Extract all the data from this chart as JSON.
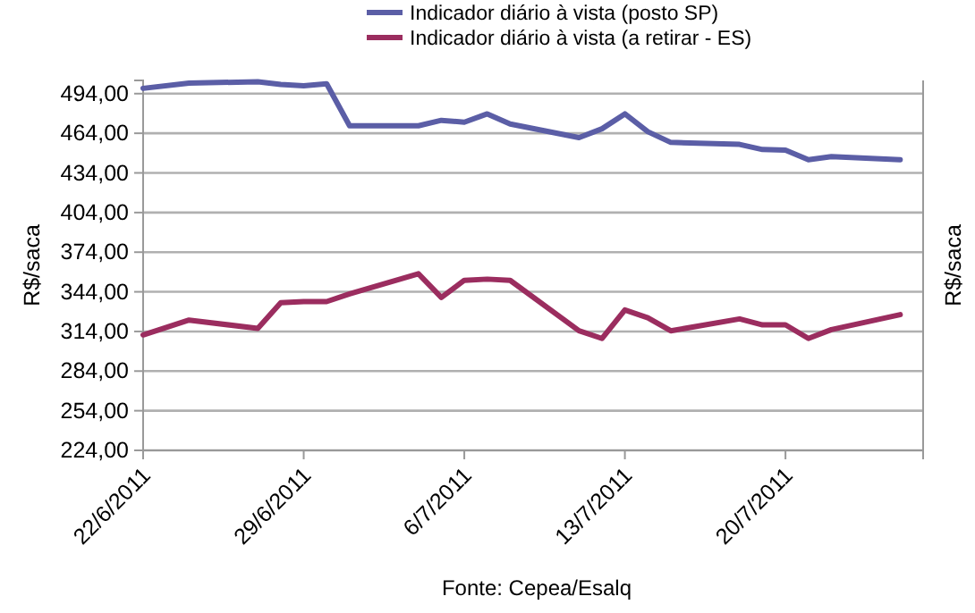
{
  "chart_data": {
    "type": "line",
    "ylabel": "R$/saca",
    "y2label": "R$/saca",
    "annotations": [
      "Fonte: Cepea/Esalq"
    ],
    "x": [
      "2011-06-22",
      "2011-06-24",
      "2011-06-27",
      "2011-06-28",
      "2011-06-29",
      "2011-06-30",
      "2011-07-01",
      "2011-07-04",
      "2011-07-05",
      "2011-07-06",
      "2011-07-07",
      "2011-07-08",
      "2011-07-11",
      "2011-07-12",
      "2011-07-13",
      "2011-07-14",
      "2011-07-15",
      "2011-07-18",
      "2011-07-19",
      "2011-07-20",
      "2011-07-21",
      "2011-07-22",
      "2011-07-25"
    ],
    "series": [
      {
        "name": "Indicador diário à vista (posto SP)",
        "color": "#5b5ea6",
        "values": [
          498,
          502,
          503,
          501,
          500,
          501.5,
          469.7,
          469.7,
          473.8,
          472.4,
          478.7,
          471,
          460.7,
          467.4,
          478.7,
          465.2,
          457.1,
          455.6,
          451.7,
          451.3,
          444,
          446.3,
          444
        ]
      },
      {
        "name": "Indicador diário à vista (a retirar - ES)",
        "color": "#9b2d5f",
        "values": [
          311.4,
          322.6,
          316.3,
          335.7,
          336.6,
          336.6,
          342.4,
          357.7,
          339.7,
          352.7,
          353.6,
          352.7,
          314.5,
          308.7,
          330.3,
          324.4,
          314.5,
          323.5,
          319,
          319,
          308.7,
          315.4,
          326.7
        ]
      }
    ],
    "xlim": [
      "2011-06-22",
      "2011-07-26"
    ],
    "xticks": [
      {
        "value": "2011-06-22",
        "label": "22/6/2011"
      },
      {
        "value": "2011-06-29",
        "label": "29/6/2011"
      },
      {
        "value": "2011-07-06",
        "label": "6/7/2011"
      },
      {
        "value": "2011-07-13",
        "label": "13/7/2011"
      },
      {
        "value": "2011-07-20",
        "label": "20/7/2011"
      }
    ],
    "ylim": [
      224,
      504
    ],
    "yticks": [
      {
        "value": 224,
        "label": "224,00"
      },
      {
        "value": 254,
        "label": "254,00"
      },
      {
        "value": 284,
        "label": "284,00"
      },
      {
        "value": 314,
        "label": "314,00"
      },
      {
        "value": 344,
        "label": "344,00"
      },
      {
        "value": 374,
        "label": "374,00"
      },
      {
        "value": 404,
        "label": "404,00"
      },
      {
        "value": 434,
        "label": "434,00"
      },
      {
        "value": 464,
        "label": "464,00"
      },
      {
        "value": 494,
        "label": "494,00"
      }
    ],
    "grid": "y",
    "legend": "top",
    "marker": "none",
    "line_style": "solid"
  }
}
